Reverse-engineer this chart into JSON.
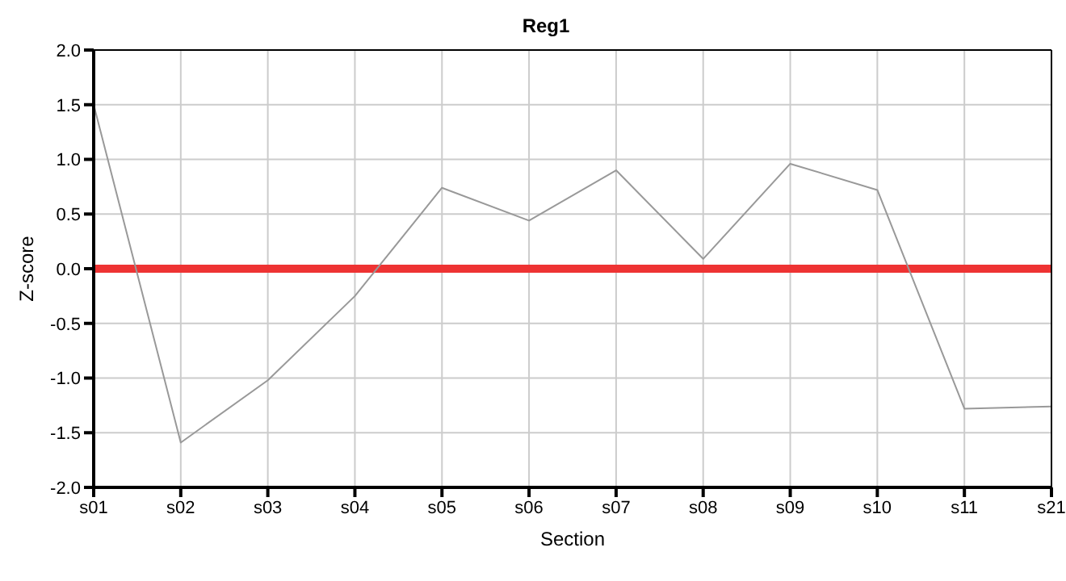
{
  "chart_data": {
    "type": "line",
    "title": "Reg1",
    "xlabel": "Section",
    "ylabel": "Z-score",
    "categories": [
      "s01",
      "s02",
      "s03",
      "s04",
      "s05",
      "s06",
      "s07",
      "s08",
      "s09",
      "s10",
      "s11",
      "s21"
    ],
    "series": [
      {
        "color": "#999999",
        "values": [
          1.5,
          -1.59,
          -1.02,
          -0.25,
          0.74,
          0.44,
          0.9,
          0.09,
          0.96,
          0.72,
          -1.28,
          -1.26
        ]
      }
    ],
    "ylim": [
      -2,
      2
    ],
    "yticks": [
      {
        "value": -2,
        "label": "-2.0"
      },
      {
        "value": -1.5,
        "label": "-1.5"
      },
      {
        "value": -1,
        "label": "-1.0"
      },
      {
        "value": -0.5,
        "label": "-0.5"
      },
      {
        "value": 0,
        "label": "0.0"
      },
      {
        "value": 0.5,
        "label": "0.5"
      },
      {
        "value": 1,
        "label": "1.0"
      },
      {
        "value": 1.5,
        "label": "1.5"
      },
      {
        "value": 2,
        "label": "2.0"
      }
    ],
    "ref_lines": [
      {
        "axis": "y",
        "value": 0,
        "color": "#ee3333"
      }
    ],
    "grid": true,
    "legend": false,
    "marker": "none",
    "line_style": "solid"
  }
}
